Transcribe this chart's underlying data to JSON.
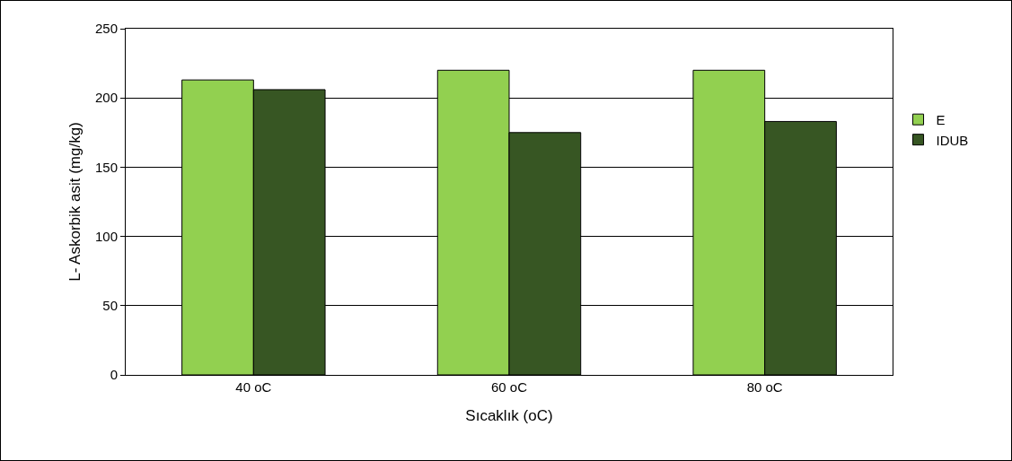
{
  "chart_data": {
    "type": "bar",
    "xlabel": "Sıcaklık (oC)",
    "ylabel": "L- Askorbik asit (mg/kg)",
    "categories": [
      "40 oC",
      "60 oC",
      "80 oC"
    ],
    "series": [
      {
        "name": "E",
        "color": "#92d050",
        "values": [
          213,
          220,
          220
        ]
      },
      {
        "name": "IDUB",
        "color": "#375623",
        "values": [
          206,
          175,
          183
        ]
      }
    ],
    "ylim": [
      0,
      250
    ],
    "yticks": [
      0,
      50,
      100,
      150,
      200,
      250
    ],
    "grid": "y",
    "legend": "right"
  }
}
